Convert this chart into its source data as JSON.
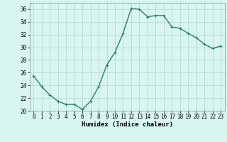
{
  "x": [
    0,
    1,
    2,
    3,
    4,
    5,
    6,
    7,
    8,
    9,
    10,
    11,
    12,
    13,
    14,
    15,
    16,
    17,
    18,
    19,
    20,
    21,
    22,
    23
  ],
  "y": [
    25.5,
    23.8,
    22.5,
    21.5,
    21.0,
    21.0,
    20.2,
    21.5,
    23.8,
    27.2,
    29.2,
    32.2,
    36.1,
    36.0,
    34.8,
    35.0,
    35.0,
    33.2,
    33.0,
    32.2,
    31.5,
    30.5,
    29.8,
    30.2
  ],
  "line_color": "#2e7d6e",
  "marker": "+",
  "marker_size": 3,
  "bg_color": "#d8f5f0",
  "grid_color": "#b8dbd5",
  "xlabel": "Humidex (Indice chaleur)",
  "ylim": [
    20,
    37
  ],
  "xlim": [
    -0.5,
    23.5
  ],
  "yticks": [
    20,
    22,
    24,
    26,
    28,
    30,
    32,
    34,
    36
  ],
  "xticks": [
    0,
    1,
    2,
    3,
    4,
    5,
    6,
    7,
    8,
    9,
    10,
    11,
    12,
    13,
    14,
    15,
    16,
    17,
    18,
    19,
    20,
    21,
    22,
    23
  ],
  "axis_fontsize": 6.5,
  "tick_fontsize": 5.5,
  "linewidth": 1.0,
  "marker_edge_width": 0.8
}
